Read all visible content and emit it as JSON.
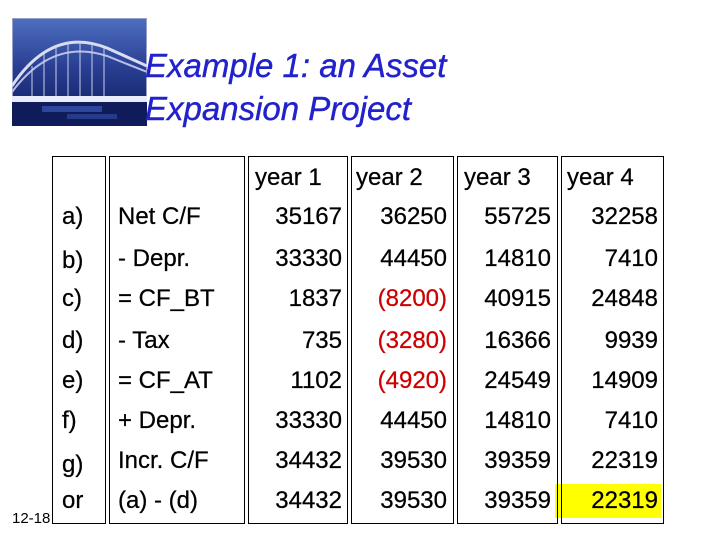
{
  "title": {
    "line1": "Example 1: an Asset",
    "line2": "Expansion Project"
  },
  "slide_number": "12-18",
  "colors": {
    "title": "#2222cc",
    "negative": "#cc0000",
    "highlight": "#ffff00"
  },
  "table": {
    "headers": [
      "year 1",
      "year 2",
      "year 3",
      "year 4"
    ],
    "rows": [
      {
        "letter": "a)",
        "label": "Net C/F",
        "values": [
          "35167",
          "36250",
          "55725",
          "32258"
        ]
      },
      {
        "letter": "b)",
        "label": "- Depr.",
        "values": [
          "33330",
          "44450",
          "14810",
          "7410"
        ]
      },
      {
        "letter": "c)",
        "label": "= CF_BT",
        "values": [
          "1837",
          "(8200)",
          "40915",
          "24848"
        ]
      },
      {
        "letter": "d)",
        "label": "- Tax",
        "values": [
          "735",
          "(3280)",
          "16366",
          "9939"
        ]
      },
      {
        "letter": "e)",
        "label": "= CF_AT",
        "values": [
          "1102",
          "(4920)",
          "24549",
          "14909"
        ]
      },
      {
        "letter": "f)",
        "label": "+ Depr.",
        "values": [
          "33330",
          "44450",
          "14810",
          "7410"
        ]
      },
      {
        "letter": "g)",
        "label": "Incr. C/F",
        "values": [
          "34432",
          "39530",
          "39359",
          "22319"
        ]
      },
      {
        "letter": "or",
        "label": "(a) - (d)",
        "values": [
          "34432",
          "39530",
          "39359",
          "22319"
        ]
      }
    ]
  }
}
